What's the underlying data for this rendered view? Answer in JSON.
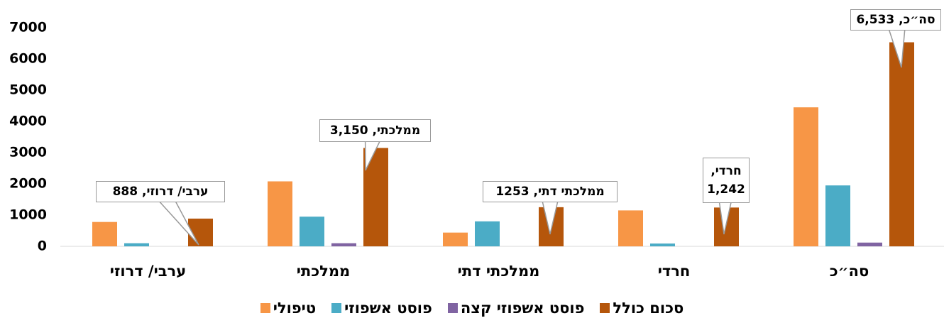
{
  "chart_data": {
    "type": "bar",
    "categories": [
      "ערבי/ דרוזי",
      "ממלכתי",
      "ממלכתי דתי",
      "חרדי",
      "סה״כ"
    ],
    "series": [
      {
        "name": "טיפולי",
        "color": "#f79646",
        "values": [
          780,
          2080,
          440,
          1150,
          4450
        ]
      },
      {
        "name": "פוסט אשפוזי",
        "color": "#4bacc6",
        "values": [
          100,
          950,
          800,
          90,
          1950
        ]
      },
      {
        "name": "פוסט אשפוזי קצה",
        "color": "#8064a2",
        "values": [
          0,
          100,
          0,
          0,
          120
        ]
      },
      {
        "name": "סכום כולל",
        "color": "#b5560b",
        "values": [
          888,
          3150,
          1253,
          1242,
          6533
        ],
        "value_labels": [
          "ערבי/ דרוזי, 888",
          "ממלכתי, 3,150",
          "ממלכתי דתי, 1253",
          "חרדי, 1,242",
          "סה״כ, 6,533"
        ]
      }
    ],
    "ylim": [
      0,
      7000
    ],
    "yticks": [
      0,
      1000,
      2000,
      3000,
      4000,
      5000,
      6000,
      7000
    ],
    "grid": false,
    "legend": "bottom"
  }
}
